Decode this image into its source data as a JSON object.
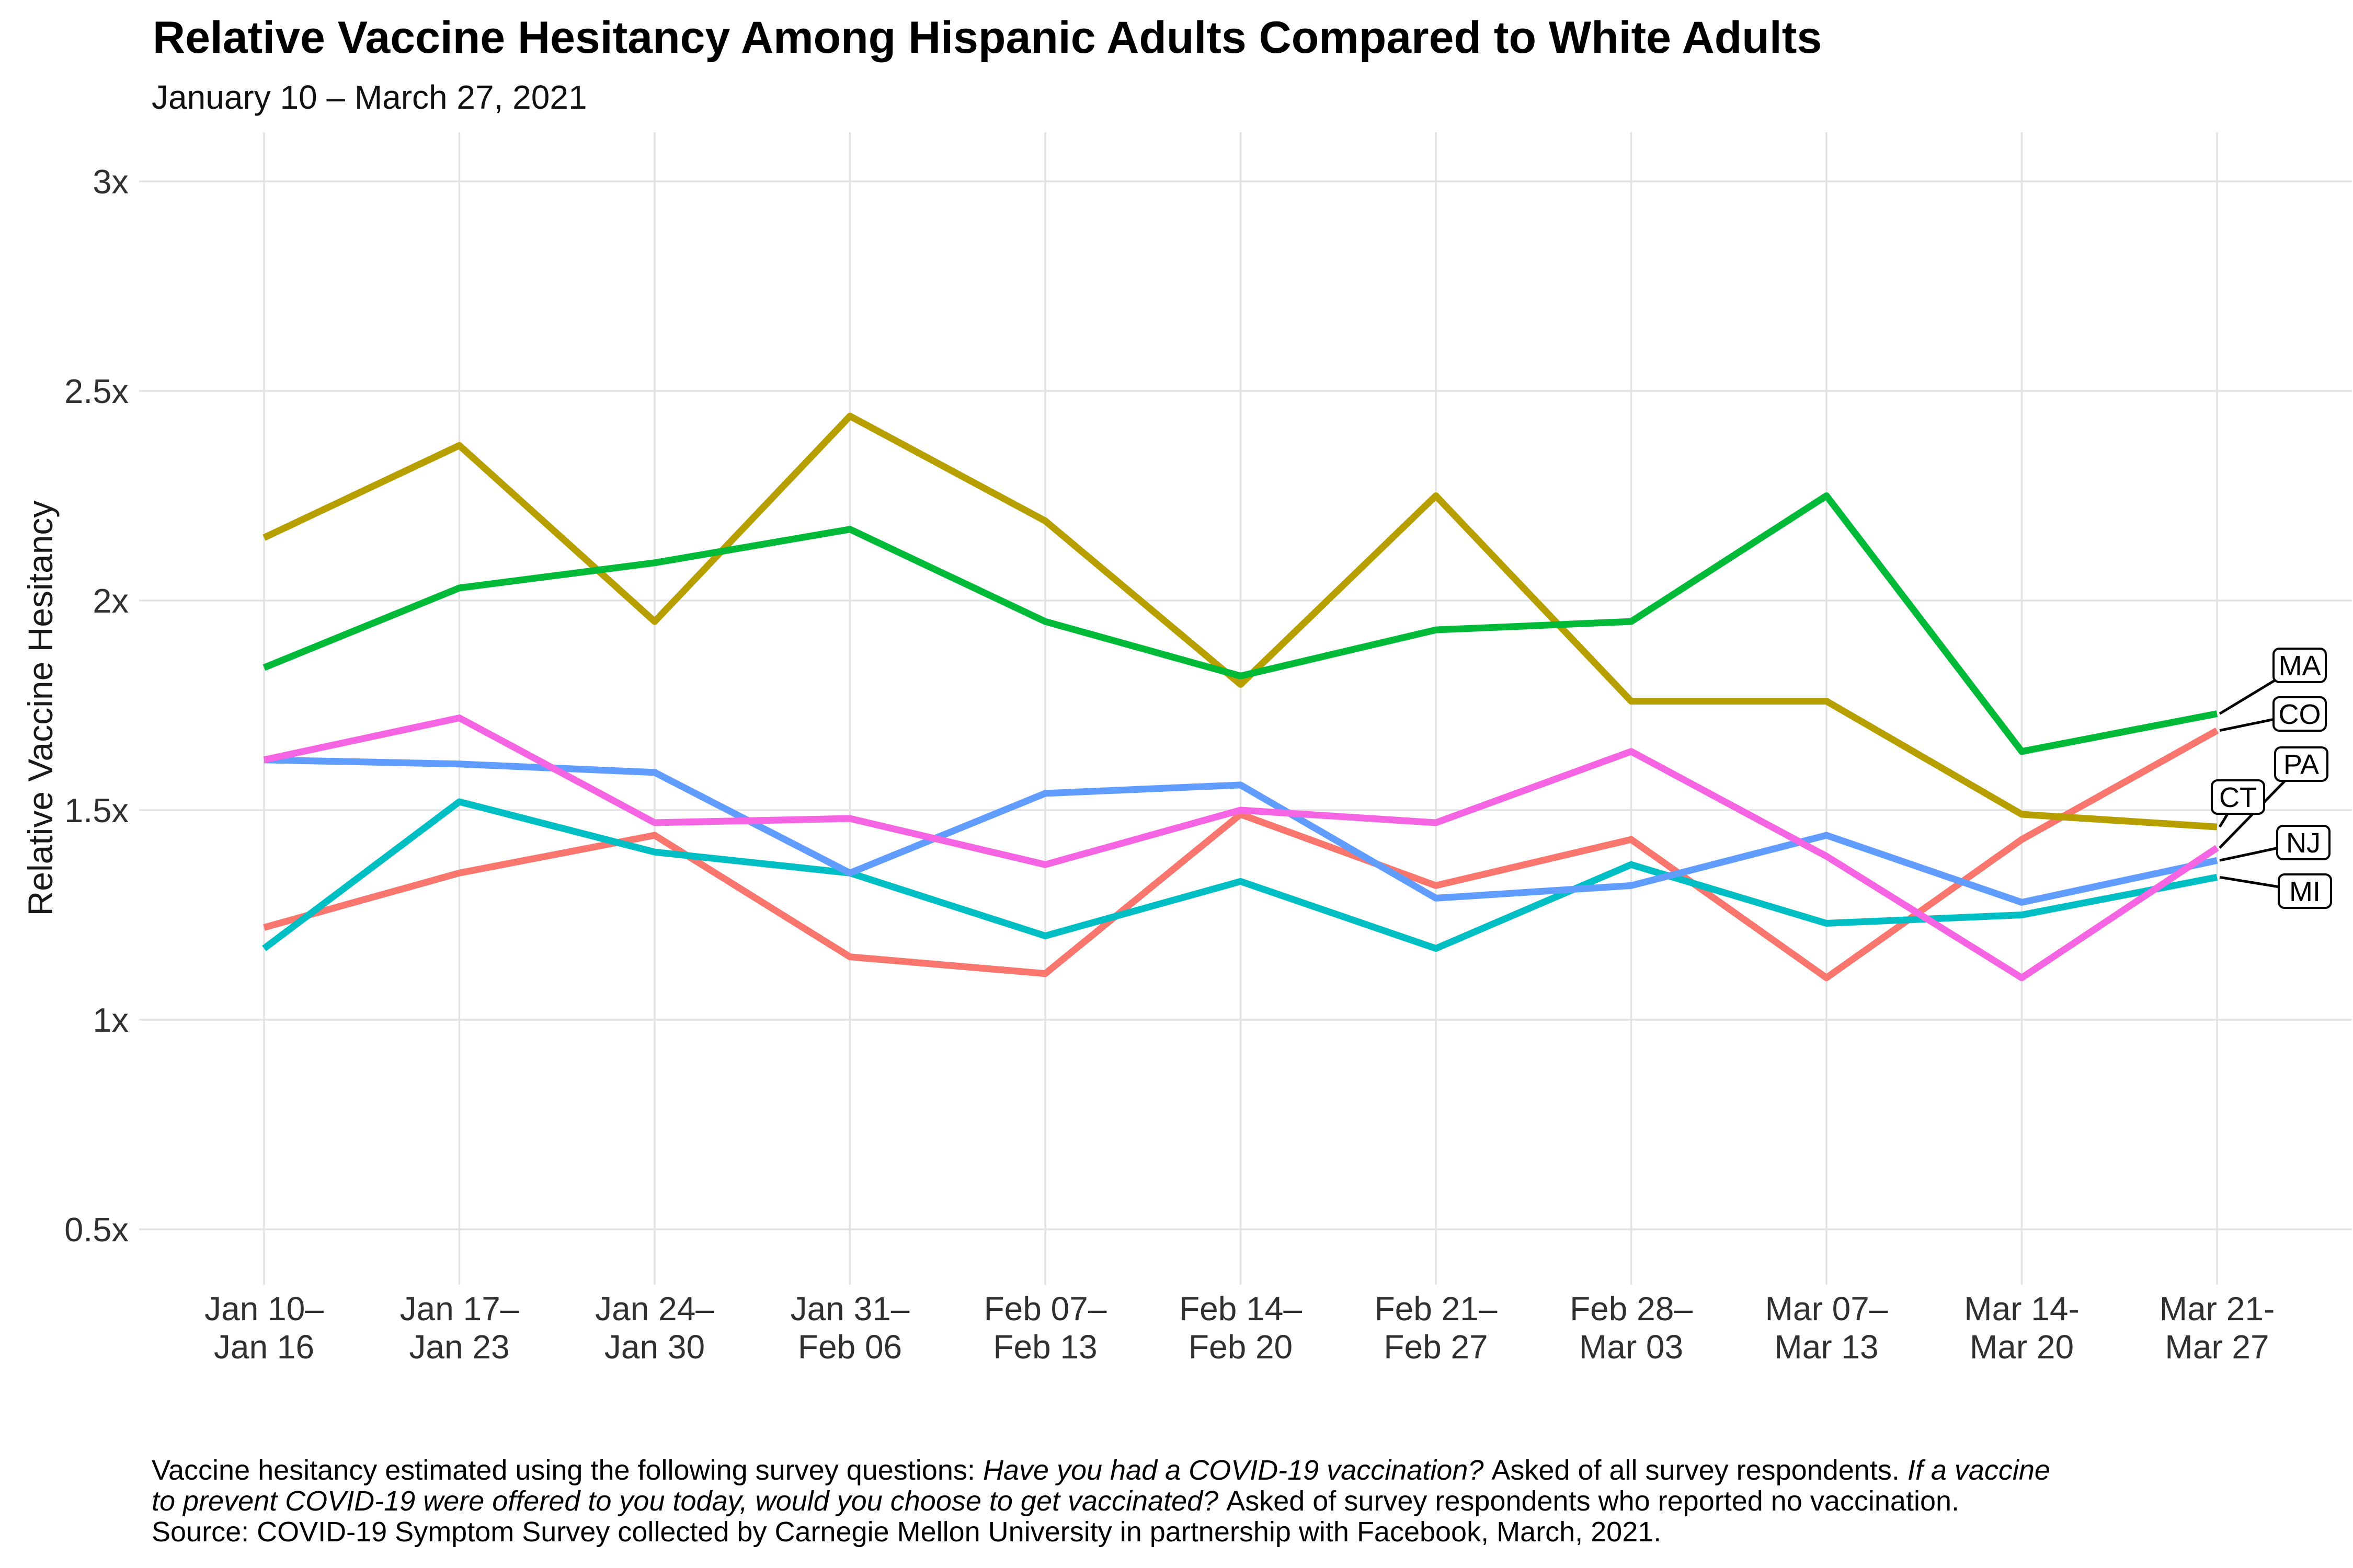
{
  "header": {
    "title": "Relative Vaccine Hesitancy Among Hispanic Adults Compared to White Adults",
    "subtitle": "January 10 – March 27, 2021"
  },
  "axes": {
    "y_title": "Relative Vaccine Hesitancy",
    "y_ticks": [
      {
        "label": "3x",
        "value": 3
      },
      {
        "label": "2.5x",
        "value": 2.5
      },
      {
        "label": "2x",
        "value": 2
      },
      {
        "label": "1.5x",
        "value": 1.5
      },
      {
        "label": "1x",
        "value": 1
      },
      {
        "label": "0.5x",
        "value": 0.5
      }
    ],
    "x_ticks": [
      {
        "line1": "Jan 10–",
        "line2": "Jan 16"
      },
      {
        "line1": "Jan 17–",
        "line2": "Jan 23"
      },
      {
        "line1": "Jan 24–",
        "line2": "Jan 30"
      },
      {
        "line1": "Jan 31–",
        "line2": "Feb 06"
      },
      {
        "line1": "Feb 07–",
        "line2": "Feb 13"
      },
      {
        "line1": "Feb 14–",
        "line2": "Feb 20"
      },
      {
        "line1": "Feb 21–",
        "line2": "Feb 27"
      },
      {
        "line1": "Feb 28–",
        "line2": "Mar 03"
      },
      {
        "line1": "Mar 07–",
        "line2": "Mar 13"
      },
      {
        "line1": "Mar 14-",
        "line2": "Mar 20"
      },
      {
        "line1": "Mar 21-",
        "line2": "Mar 27"
      }
    ]
  },
  "chart_data": {
    "type": "line",
    "title": "Relative Vaccine Hesitancy Among Hispanic Adults Compared to White Adults",
    "subtitle": "January 10 – March 27, 2021",
    "xlabel": "",
    "ylabel": "Relative Vaccine Hesitancy",
    "ylim": [
      0.37,
      3.12
    ],
    "grid": true,
    "legend_position": "right-end-labels",
    "categories": [
      "Jan 10–Jan 16",
      "Jan 17–Jan 23",
      "Jan 24–Jan 30",
      "Jan 31–Feb 06",
      "Feb 07–Feb 13",
      "Feb 14–Feb 20",
      "Feb 21–Feb 27",
      "Feb 28–Mar 03",
      "Mar 07–Mar 13",
      "Mar 14-Mar 20",
      "Mar 21-Mar 27"
    ],
    "series": [
      {
        "name": "CO",
        "color": "#F8766D",
        "values": [
          1.22,
          1.35,
          1.44,
          1.15,
          1.11,
          1.49,
          1.32,
          1.43,
          1.1,
          1.43,
          1.69
        ]
      },
      {
        "name": "CT",
        "color": "#B79F00",
        "values": [
          2.15,
          2.37,
          1.95,
          2.44,
          2.19,
          1.8,
          2.25,
          1.76,
          1.76,
          1.49,
          1.46
        ]
      },
      {
        "name": "MA",
        "color": "#00BA38",
        "values": [
          1.84,
          2.03,
          2.09,
          2.17,
          1.95,
          1.82,
          1.93,
          1.95,
          2.25,
          1.64,
          1.73
        ]
      },
      {
        "name": "MI",
        "color": "#00BFC4",
        "values": [
          1.17,
          1.52,
          1.4,
          1.35,
          1.2,
          1.33,
          1.17,
          1.37,
          1.23,
          1.25,
          1.34
        ]
      },
      {
        "name": "NJ",
        "color": "#619CFF",
        "values": [
          1.62,
          1.61,
          1.59,
          1.35,
          1.54,
          1.56,
          1.29,
          1.32,
          1.44,
          1.28,
          1.38
        ]
      },
      {
        "name": "PA",
        "color": "#F564E3",
        "values": [
          1.62,
          1.72,
          1.47,
          1.48,
          1.37,
          1.5,
          1.47,
          1.64,
          1.39,
          1.1,
          1.41
        ]
      }
    ]
  },
  "caption": {
    "lines": [
      [
        {
          "text": "Vaccine hesitancy estimated using the following survey questions: ",
          "italic": false
        },
        {
          "text": "Have you had a COVID-19 vaccination? ",
          "italic": true
        },
        {
          "text": "Asked of all survey respondents. ",
          "italic": false
        },
        {
          "text": "If a vaccine",
          "italic": true
        }
      ],
      [
        {
          "text": "to prevent COVID-19 were offered to you today, would you choose to get vaccinated? ",
          "italic": true
        },
        {
          "text": "Asked of survey respondents who reported no vaccination.",
          "italic": false
        }
      ],
      [
        {
          "text": "Source: COVID-19 Symptom Survey collected by Carnegie Mellon University in partnership with Facebook, March, 2021.",
          "italic": false
        }
      ]
    ]
  },
  "colors": {
    "background": "#FFFFFF",
    "gridline": "#E3E3E3",
    "axis_text": "#303030",
    "label_box_border": "#000000",
    "leader_line": "#000000"
  }
}
